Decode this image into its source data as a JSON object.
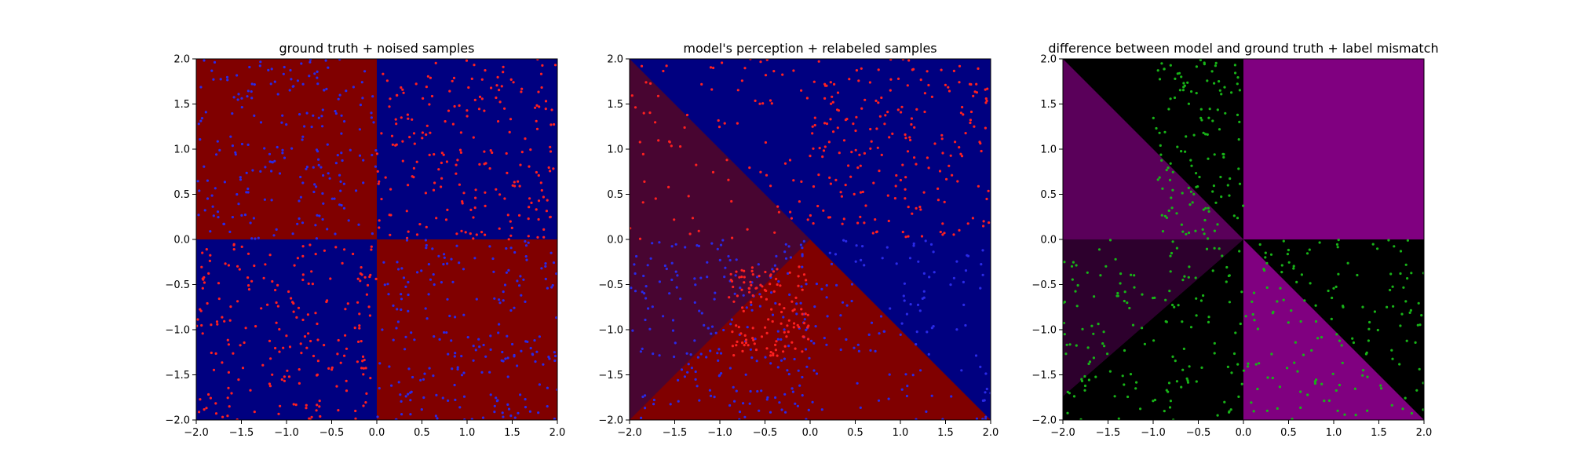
{
  "colors": {
    "class_a": "#000080",
    "class_b": "#800000",
    "mismatch": "#800080",
    "match": "#000000",
    "point_red": "#ff2020",
    "point_blue": "#2a2ae8",
    "point_green": "#18b418"
  },
  "chart_data": [
    {
      "type": "heatmap",
      "title": "ground truth + noised samples",
      "xlabel": "",
      "ylabel": "",
      "xlim": [
        -2.0,
        2.0
      ],
      "ylim": [
        -2.0,
        2.0
      ],
      "xticks": [
        "−2.0",
        "−1.5",
        "−1.0",
        "−0.5",
        "0.0",
        "0.5",
        "1.0",
        "1.5",
        "2.0"
      ],
      "yticks": [
        "−2.0",
        "−1.5",
        "−1.0",
        "−0.5",
        "0.0",
        "0.5",
        "1.0",
        "1.5",
        "2.0"
      ],
      "regions": [
        {
          "x": [
            -2.0,
            0.0
          ],
          "y": [
            0.0,
            2.0
          ],
          "value": "red"
        },
        {
          "x": [
            0.0,
            2.0
          ],
          "y": [
            0.0,
            2.0
          ],
          "value": "blue"
        },
        {
          "x": [
            -2.0,
            0.0
          ],
          "y": [
            -2.0,
            0.0
          ],
          "value": "blue"
        },
        {
          "x": [
            0.0,
            2.0
          ],
          "y": [
            -2.0,
            0.0
          ],
          "value": "red"
        }
      ],
      "samples": [
        {
          "color": "blue",
          "region": {
            "x": [
              -2.0,
              0.0
            ],
            "y": [
              0.0,
              2.0
            ]
          },
          "count": 210
        },
        {
          "color": "red",
          "region": {
            "x": [
              0.0,
              2.0
            ],
            "y": [
              0.0,
              2.0
            ]
          },
          "count": 210
        },
        {
          "color": "red",
          "region": {
            "x": [
              -2.0,
              0.0
            ],
            "y": [
              -2.0,
              0.0
            ]
          },
          "count": 210
        },
        {
          "color": "blue",
          "region": {
            "x": [
              0.0,
              2.0
            ],
            "y": [
              -2.0,
              0.0
            ]
          },
          "count": 210
        }
      ],
      "grid": false
    },
    {
      "type": "heatmap",
      "title": "model's perception + relabeled samples",
      "xlabel": "",
      "ylabel": "",
      "xlim": [
        -2.0,
        2.0
      ],
      "ylim": [
        -2.0,
        2.0
      ],
      "xticks": [
        "−2.0",
        "−1.5",
        "−1.0",
        "−0.5",
        "0.0",
        "0.5",
        "1.0",
        "1.5",
        "2.0"
      ],
      "yticks": [
        "−2.0",
        "−1.5",
        "−1.0",
        "−0.5",
        "0.0",
        "0.5",
        "1.0",
        "1.5",
        "2.0"
      ],
      "decision_boundary": "x + y = 0",
      "regions": [
        {
          "side": "x + y > 0",
          "value": "blue"
        },
        {
          "side": "x + y < 0, upper-left wedge",
          "value": "red fading to purple"
        },
        {
          "side": "x + y < 0, lower wedge",
          "value": "red"
        }
      ],
      "samples": [
        {
          "color": "red",
          "region": {
            "x": [
              0.0,
              2.0
            ],
            "y": [
              0.0,
              2.0
            ]
          },
          "count": 210
        },
        {
          "color": "red",
          "region": {
            "x": [
              -2.0,
              0.0
            ],
            "y": [
              0.0,
              2.0
            ]
          },
          "count": 80
        },
        {
          "color": "blue",
          "region": {
            "x": [
              -2.0,
              0.0
            ],
            "y": [
              -2.0,
              0.0
            ]
          },
          "count": 210
        },
        {
          "color": "blue",
          "region": {
            "x": [
              0.0,
              2.0
            ],
            "y": [
              -2.0,
              0.0
            ]
          },
          "count": 120
        },
        {
          "color": "red",
          "region": {
            "x": [
              -0.9,
              0.0
            ],
            "y": [
              -1.3,
              -0.3
            ]
          },
          "count": 120
        }
      ],
      "grid": false
    },
    {
      "type": "heatmap",
      "title": "difference between model and ground truth + label mismatch",
      "xlabel": "",
      "ylabel": "",
      "xlim": [
        -2.0,
        2.0
      ],
      "ylim": [
        -2.0,
        2.0
      ],
      "xticks": [
        "−2.0",
        "−1.5",
        "−1.0",
        "−0.5",
        "0.0",
        "0.5",
        "1.0",
        "1.5",
        "2.0"
      ],
      "yticks": [
        "−2.0",
        "−1.5",
        "−1.0",
        "−0.5",
        "0.0",
        "0.5",
        "1.0",
        "1.5",
        "2.0"
      ],
      "regions": [
        {
          "x": [
            0.0,
            2.0
          ],
          "y": [
            0.0,
            2.0
          ],
          "value": "mismatch"
        },
        {
          "side": "x > 0, y < 0, x + y < 0",
          "value": "mismatch"
        },
        {
          "side": "x > 0, y < 0, x + y > 0",
          "value": "match"
        },
        {
          "side": "x < 0, y > 0, x + y < 0",
          "value": "mismatch (fading)"
        },
        {
          "side": "x < 0, y > 0, x + y > 0",
          "value": "match"
        },
        {
          "x": [
            -2.0,
            0.0
          ],
          "y": [
            -2.0,
            0.0
          ],
          "value": "partial mismatch wedge"
        }
      ],
      "samples": [
        {
          "color": "green",
          "region": {
            "x": [
              -1.0,
              0.0
            ],
            "y": [
              0.0,
              2.0
            ]
          },
          "count": 130
        },
        {
          "color": "green",
          "region": {
            "x": [
              0.0,
              2.0
            ],
            "y": [
              -2.0,
              0.0
            ]
          },
          "count": 150
        },
        {
          "color": "green",
          "region": {
            "x": [
              -2.0,
              0.0
            ],
            "y": [
              -2.0,
              0.0
            ]
          },
          "count": 150
        }
      ],
      "grid": false
    }
  ]
}
